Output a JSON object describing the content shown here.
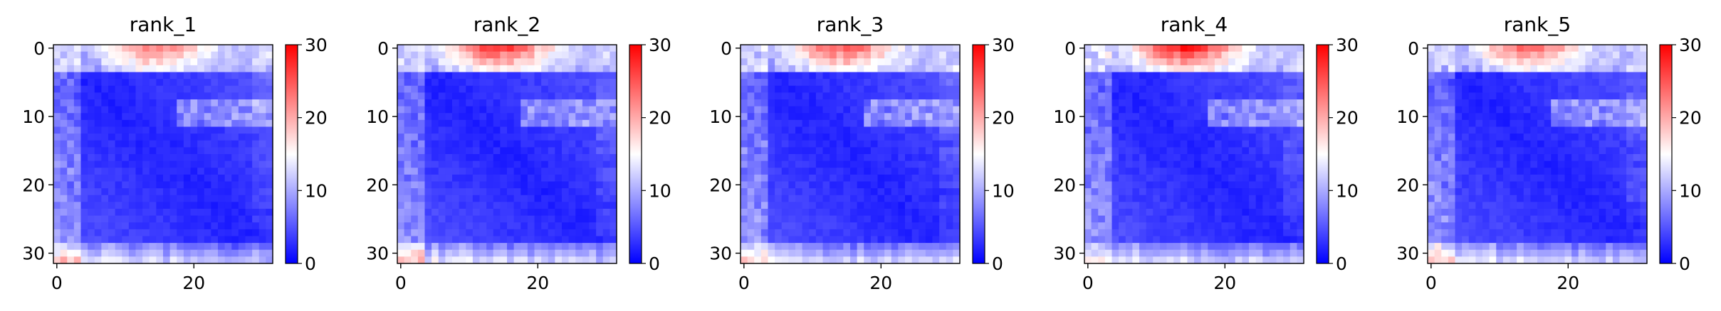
{
  "figure": {
    "background": "#ffffff"
  },
  "chart_data": [
    {
      "type": "heatmap",
      "title": "rank_1",
      "xlabel": "",
      "ylabel": "",
      "size": 32,
      "xticks": [
        0,
        20
      ],
      "yticks": [
        0,
        10,
        20,
        30
      ],
      "colorbar": {
        "ticks": [
          0,
          10,
          20,
          30
        ],
        "range": [
          0,
          30
        ],
        "colormap": "bwr"
      },
      "top_band_max": 19,
      "variant": 1
    },
    {
      "type": "heatmap",
      "title": "rank_2",
      "xlabel": "",
      "ylabel": "",
      "size": 32,
      "xticks": [
        0,
        20
      ],
      "yticks": [
        0,
        10,
        20,
        30
      ],
      "colorbar": {
        "ticks": [
          0,
          10,
          20,
          30
        ],
        "range": [
          0,
          30
        ],
        "colormap": "bwr"
      },
      "top_band_max": 23,
      "variant": 2
    },
    {
      "type": "heatmap",
      "title": "rank_3",
      "xlabel": "",
      "ylabel": "",
      "size": 32,
      "xticks": [
        0,
        20
      ],
      "yticks": [
        0,
        10,
        20,
        30
      ],
      "colorbar": {
        "ticks": [
          0,
          10,
          20,
          30
        ],
        "range": [
          0,
          30
        ],
        "colormap": "bwr"
      },
      "top_band_max": 21,
      "variant": 3
    },
    {
      "type": "heatmap",
      "title": "rank_4",
      "xlabel": "",
      "ylabel": "",
      "size": 32,
      "xticks": [
        0,
        20
      ],
      "yticks": [
        0,
        10,
        20,
        30
      ],
      "colorbar": {
        "ticks": [
          0,
          10,
          20,
          30
        ],
        "range": [
          0,
          30
        ],
        "colormap": "bwr"
      },
      "top_band_max": 25,
      "variant": 4
    },
    {
      "type": "heatmap",
      "title": "rank_5",
      "xlabel": "",
      "ylabel": "",
      "size": 32,
      "xticks": [
        0,
        20
      ],
      "yticks": [
        0,
        10,
        20,
        30
      ],
      "colorbar": {
        "ticks": [
          0,
          10,
          20,
          30
        ],
        "range": [
          0,
          30
        ],
        "colormap": "bwr"
      },
      "top_band_max": 20,
      "variant": 5
    }
  ]
}
